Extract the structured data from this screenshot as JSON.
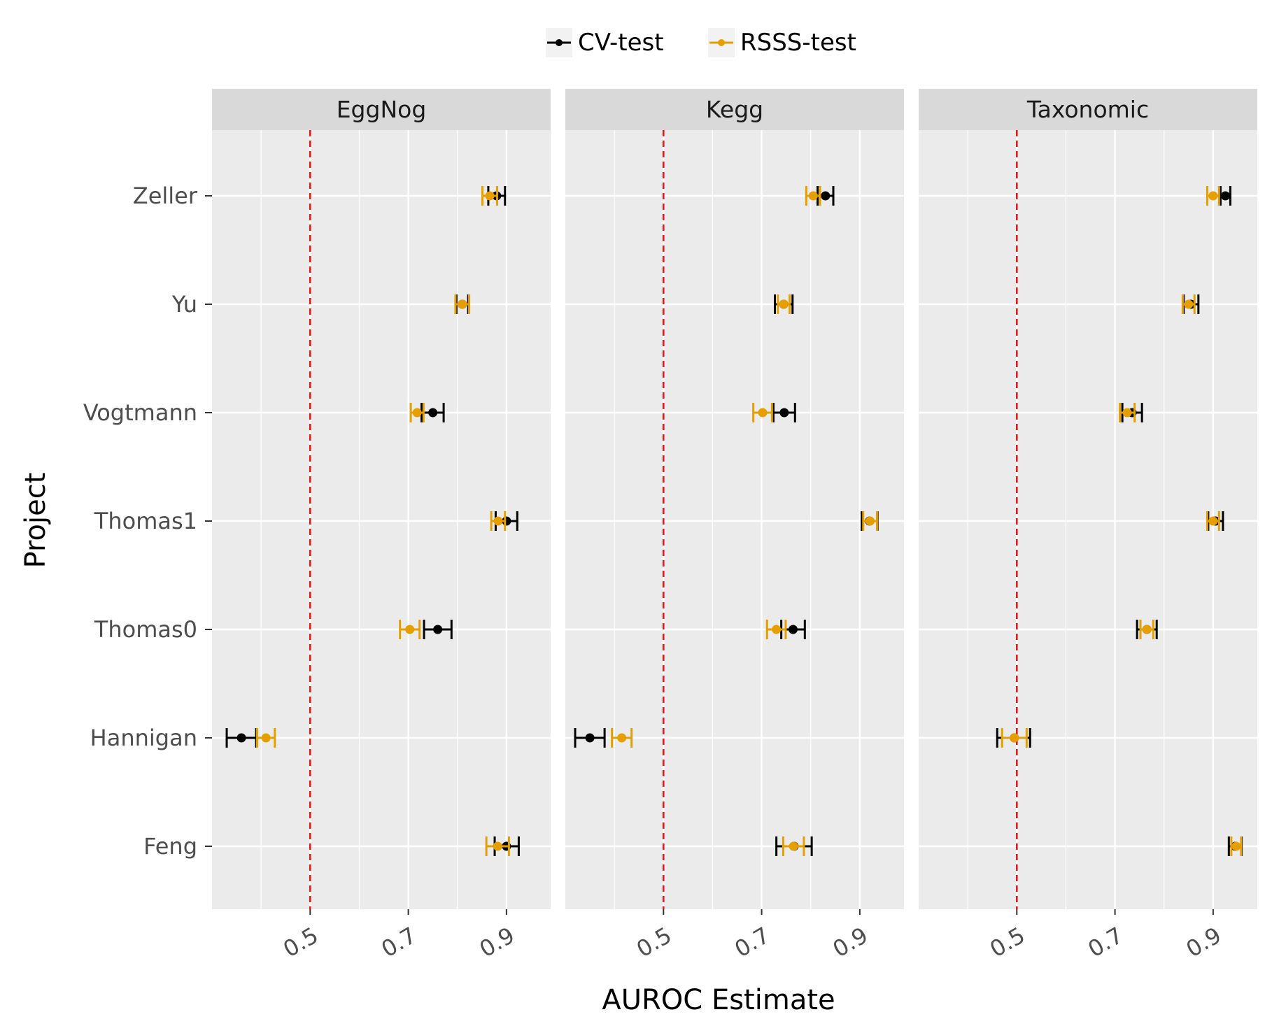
{
  "chart_data": {
    "type": "scatter",
    "subtype": "faceted point-range (dot with error bars)",
    "xlabel": "AUROC Estimate",
    "ylabel": "Project",
    "xlim": [
      0.3,
      0.99
    ],
    "xticks": [
      "0.5",
      "0.7",
      "0.9"
    ],
    "xtick_values": [
      0.5,
      0.7,
      0.9
    ],
    "reference_line": {
      "x": 0.5,
      "style": "dashed",
      "color": "#e41a1c"
    },
    "grid": true,
    "legend": {
      "placement": "top",
      "entries": [
        "CV-test",
        "RSSS-test"
      ]
    },
    "colors": {
      "CV-test": "#000000",
      "RSSS-test": "#e69f00",
      "panel_bg": "#ebebeb",
      "strip_bg": "#d9d9d9"
    },
    "categories": [
      "Zeller",
      "Yu",
      "Vogtmann",
      "Thomas1",
      "Thomas0",
      "Hannigan",
      "Feng"
    ],
    "facets": [
      {
        "name": "EggNog",
        "series": [
          {
            "name": "CV-test",
            "values": [
              0.88,
              0.81,
              0.75,
              0.9,
              0.76,
              0.36,
              0.9
            ],
            "lower": [
              0.863,
              0.798,
              0.727,
              0.878,
              0.732,
              0.33,
              0.876
            ],
            "upper": [
              0.897,
              0.822,
              0.772,
              0.922,
              0.788,
              0.39,
              0.925
            ]
          },
          {
            "name": "RSSS-test",
            "values": [
              0.866,
              0.81,
              0.718,
              0.883,
              0.703,
              0.41,
              0.882
            ],
            "lower": [
              0.851,
              0.796,
              0.705,
              0.869,
              0.683,
              0.392,
              0.859
            ],
            "upper": [
              0.881,
              0.824,
              0.731,
              0.897,
              0.723,
              0.428,
              0.905
            ]
          }
        ]
      },
      {
        "name": "Kegg",
        "series": [
          {
            "name": "CV-test",
            "values": [
              0.83,
              0.745,
              0.746,
              0.92,
              0.764,
              0.35,
              0.766
            ],
            "lower": [
              0.814,
              0.727,
              0.724,
              0.904,
              0.74,
              0.32,
              0.73
            ],
            "upper": [
              0.846,
              0.763,
              0.768,
              0.936,
              0.788,
              0.38,
              0.802
            ]
          },
          {
            "name": "RSSS-test",
            "values": [
              0.805,
              0.745,
              0.702,
              0.921,
              0.73,
              0.415,
              0.765
            ],
            "lower": [
              0.791,
              0.733,
              0.683,
              0.907,
              0.711,
              0.395,
              0.744
            ],
            "upper": [
              0.819,
              0.757,
              0.721,
              0.935,
              0.749,
              0.435,
              0.786
            ]
          }
        ]
      },
      {
        "name": "Taxonomic",
        "series": [
          {
            "name": "CV-test",
            "values": [
              0.925,
              0.855,
              0.735,
              0.905,
              0.765,
              0.495,
              0.945
            ],
            "lower": [
              0.915,
              0.84,
              0.715,
              0.89,
              0.745,
              0.46,
              0.932
            ],
            "upper": [
              0.935,
              0.87,
              0.755,
              0.92,
              0.785,
              0.527,
              0.958
            ]
          },
          {
            "name": "RSSS-test",
            "values": [
              0.9,
              0.85,
              0.725,
              0.9,
              0.765,
              0.495,
              0.947
            ],
            "lower": [
              0.888,
              0.838,
              0.71,
              0.888,
              0.752,
              0.47,
              0.937
            ],
            "upper": [
              0.912,
              0.862,
              0.74,
              0.912,
              0.778,
              0.52,
              0.957
            ]
          }
        ]
      }
    ]
  }
}
